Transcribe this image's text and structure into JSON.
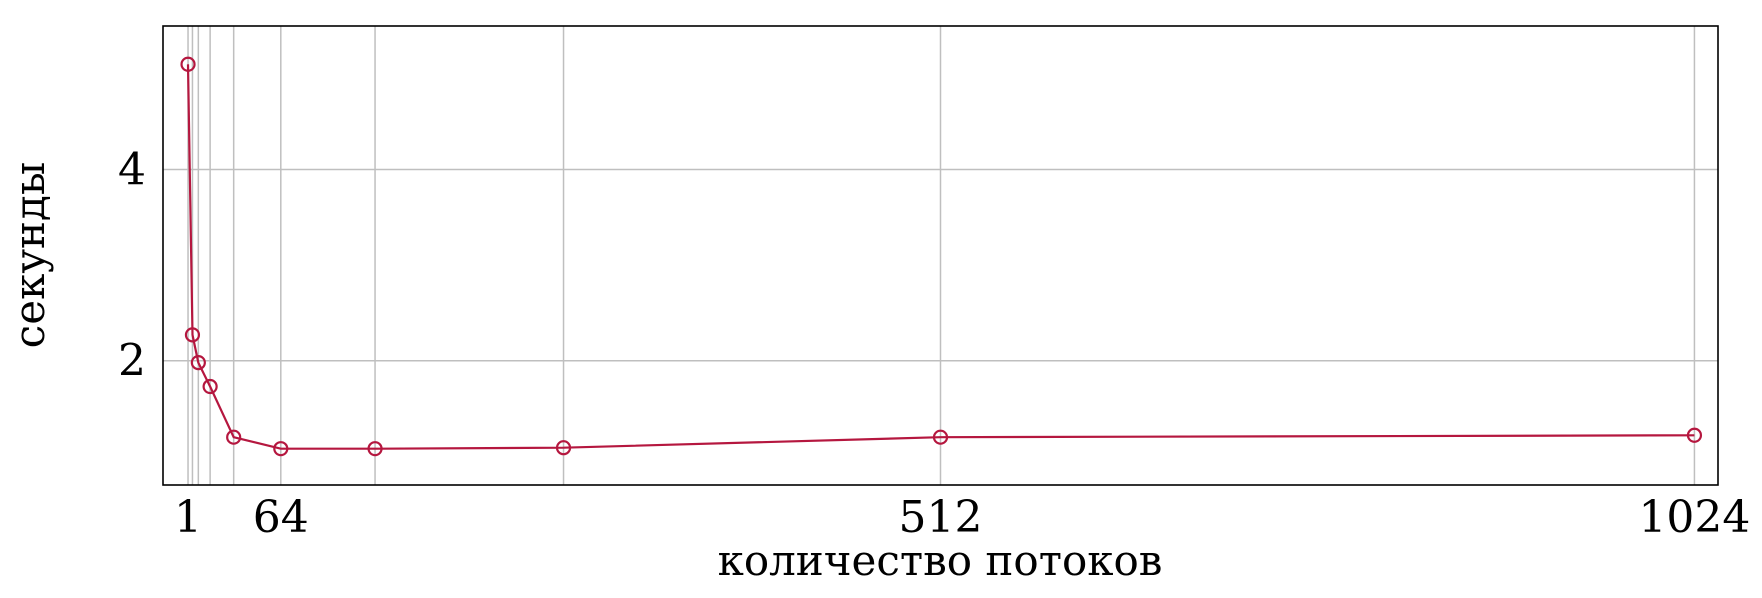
{
  "chart_data": {
    "type": "line",
    "title": "",
    "xlabel": "количество потоков",
    "ylabel": "секунды",
    "xlim": [
      -16,
      1040
    ],
    "ylim": [
      0.7,
      5.5
    ],
    "x_ticks": [
      1,
      64,
      512,
      1024
    ],
    "x_tick_labels": [
      "1",
      "64",
      "512",
      "1024"
    ],
    "y_ticks": [
      2,
      4
    ],
    "y_tick_labels": [
      "2",
      "4"
    ],
    "x_gridlines": [
      1,
      4,
      8,
      16,
      32,
      64,
      128,
      256,
      512,
      1024
    ],
    "y_gridlines": [
      2,
      4
    ],
    "grid": true,
    "legend": "none",
    "series": [
      {
        "color": "#b5173f",
        "marker": "circle",
        "x": [
          1,
          4,
          8,
          16,
          32,
          64,
          128,
          256,
          512,
          1024
        ],
        "y": [
          5.1,
          2.27,
          1.98,
          1.73,
          1.2,
          1.08,
          1.08,
          1.09,
          1.2,
          1.22
        ]
      }
    ]
  }
}
